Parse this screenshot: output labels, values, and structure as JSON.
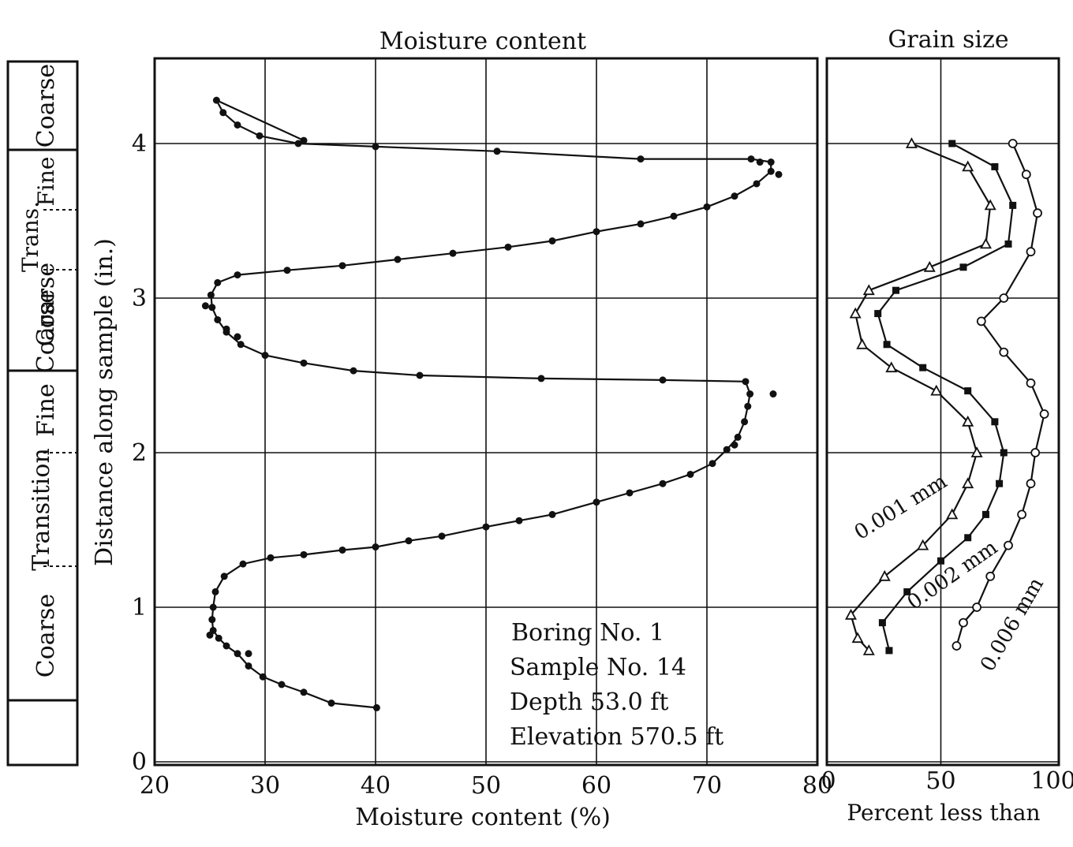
{
  "strip": {
    "labels": [
      "Coarse",
      "Fine",
      "Trans.",
      "Coarse",
      "Coarse",
      "Fine",
      "Transition",
      "Coarse"
    ]
  },
  "annotation": {
    "lines": [
      "Boring No. 1",
      "Sample No. 14",
      "Depth 53.0 ft",
      "Elevation 570.5 ft"
    ]
  },
  "curve_labels": [
    "0.001 mm",
    "0.002 mm",
    "0.006 mm"
  ],
  "chart_data": [
    {
      "type": "scatter",
      "title": "Moisture content",
      "xlabel": "Moisture content (%)",
      "ylabel": "Distance along sample (in.)",
      "xlim": [
        20,
        80
      ],
      "ylim": [
        0,
        4.5
      ],
      "x_ticks": [
        "20",
        "30",
        "40",
        "50",
        "60",
        "70",
        "80"
      ],
      "y_ticks": [
        "0",
        "1",
        "2",
        "3",
        "4"
      ],
      "grid": true,
      "series": [
        {
          "marker": "filled",
          "points": [
            [
              40.1,
              0.35
            ],
            [
              36.0,
              0.38
            ],
            [
              33.5,
              0.45
            ],
            [
              31.5,
              0.5
            ],
            [
              29.8,
              0.55
            ],
            [
              28.5,
              0.62
            ],
            [
              27.5,
              0.7
            ],
            [
              26.5,
              0.75
            ],
            [
              25.8,
              0.8
            ],
            [
              25.3,
              0.85
            ],
            [
              25.2,
              0.92
            ],
            [
              25.3,
              1.0
            ],
            [
              25.5,
              1.1
            ],
            [
              26.3,
              1.2
            ],
            [
              28.0,
              1.28
            ],
            [
              30.5,
              1.32
            ],
            [
              33.5,
              1.34
            ],
            [
              37.0,
              1.37
            ],
            [
              40.0,
              1.39
            ],
            [
              43.0,
              1.43
            ],
            [
              46.0,
              1.46
            ],
            [
              50.0,
              1.52
            ],
            [
              53.0,
              1.56
            ],
            [
              56.0,
              1.6
            ],
            [
              60.0,
              1.68
            ],
            [
              63.0,
              1.74
            ],
            [
              66.0,
              1.8
            ],
            [
              68.5,
              1.86
            ],
            [
              70.5,
              1.93
            ],
            [
              71.8,
              2.02
            ],
            [
              72.8,
              2.1
            ],
            [
              73.4,
              2.2
            ],
            [
              73.7,
              2.3
            ],
            [
              73.9,
              2.38
            ],
            [
              73.5,
              2.46
            ],
            [
              66.0,
              2.47
            ],
            [
              55.0,
              2.48
            ],
            [
              44.0,
              2.5
            ],
            [
              38.0,
              2.53
            ],
            [
              33.5,
              2.58
            ],
            [
              30.0,
              2.63
            ],
            [
              27.8,
              2.7
            ],
            [
              26.5,
              2.78
            ],
            [
              25.7,
              2.86
            ],
            [
              25.2,
              2.94
            ],
            [
              25.1,
              3.02
            ],
            [
              25.7,
              3.1
            ],
            [
              27.5,
              3.15
            ],
            [
              32.0,
              3.18
            ],
            [
              37.0,
              3.21
            ],
            [
              42.0,
              3.25
            ],
            [
              47.0,
              3.29
            ],
            [
              52.0,
              3.33
            ],
            [
              56.0,
              3.37
            ],
            [
              60.0,
              3.43
            ],
            [
              64.0,
              3.48
            ],
            [
              67.0,
              3.53
            ],
            [
              70.0,
              3.59
            ],
            [
              72.5,
              3.66
            ],
            [
              74.5,
              3.74
            ],
            [
              75.8,
              3.82
            ],
            [
              75.8,
              3.88
            ],
            [
              74.0,
              3.9
            ],
            [
              64.0,
              3.9
            ],
            [
              51.0,
              3.95
            ],
            [
              40.0,
              3.98
            ],
            [
              33.0,
              4.0
            ],
            [
              29.5,
              4.05
            ],
            [
              27.5,
              4.12
            ],
            [
              26.2,
              4.2
            ],
            [
              25.6,
              4.28
            ],
            [
              33.5,
              4.02
            ],
            [
              76.5,
              3.8
            ],
            [
              76.0,
              2.38
            ],
            [
              26.5,
              2.8
            ],
            [
              27.5,
              2.75
            ],
            [
              25.0,
              0.82
            ],
            [
              28.5,
              0.7
            ],
            [
              24.6,
              2.95
            ],
            [
              74.8,
              3.88
            ],
            [
              72.5,
              2.05
            ]
          ]
        }
      ]
    },
    {
      "type": "scatter",
      "title": "Grain size",
      "xlabel": "Percent less than",
      "xlim": [
        0,
        100
      ],
      "ylim": [
        0,
        4.5
      ],
      "x_ticks": [
        "0",
        "50",
        "100"
      ],
      "grid": true,
      "series": [
        {
          "name": "0.001 mm",
          "marker": "open-triangle",
          "points": [
            [
              37,
              4.0
            ],
            [
              62,
              3.85
            ],
            [
              72,
              3.6
            ],
            [
              70,
              3.35
            ],
            [
              45,
              3.2
            ],
            [
              18,
              3.05
            ],
            [
              12,
              2.9
            ],
            [
              15,
              2.7
            ],
            [
              28,
              2.55
            ],
            [
              48,
              2.4
            ],
            [
              62,
              2.2
            ],
            [
              66,
              2.0
            ],
            [
              62,
              1.8
            ],
            [
              55,
              1.6
            ],
            [
              42,
              1.4
            ],
            [
              25,
              1.2
            ],
            [
              10,
              0.95
            ],
            [
              13,
              0.8
            ],
            [
              18,
              0.72
            ]
          ]
        },
        {
          "name": "0.002 mm",
          "marker": "filled-square",
          "points": [
            [
              55,
              4.0
            ],
            [
              74,
              3.85
            ],
            [
              82,
              3.6
            ],
            [
              80,
              3.35
            ],
            [
              60,
              3.2
            ],
            [
              30,
              3.05
            ],
            [
              22,
              2.9
            ],
            [
              26,
              2.7
            ],
            [
              42,
              2.55
            ],
            [
              62,
              2.4
            ],
            [
              74,
              2.2
            ],
            [
              78,
              2.0
            ],
            [
              76,
              1.8
            ],
            [
              70,
              1.6
            ],
            [
              62,
              1.45
            ],
            [
              50,
              1.3
            ],
            [
              35,
              1.1
            ],
            [
              24,
              0.9
            ],
            [
              27,
              0.72
            ]
          ]
        },
        {
          "name": "0.006 mm",
          "marker": "open-circle",
          "points": [
            [
              82,
              4.0
            ],
            [
              88,
              3.8
            ],
            [
              93,
              3.55
            ],
            [
              90,
              3.3
            ],
            [
              78,
              3.0
            ],
            [
              68,
              2.85
            ],
            [
              78,
              2.65
            ],
            [
              90,
              2.45
            ],
            [
              96,
              2.25
            ],
            [
              92,
              2.0
            ],
            [
              90,
              1.8
            ],
            [
              86,
              1.6
            ],
            [
              80,
              1.4
            ],
            [
              72,
              1.2
            ],
            [
              66,
              1.0
            ],
            [
              60,
              0.9
            ],
            [
              57,
              0.75
            ]
          ]
        }
      ]
    }
  ]
}
